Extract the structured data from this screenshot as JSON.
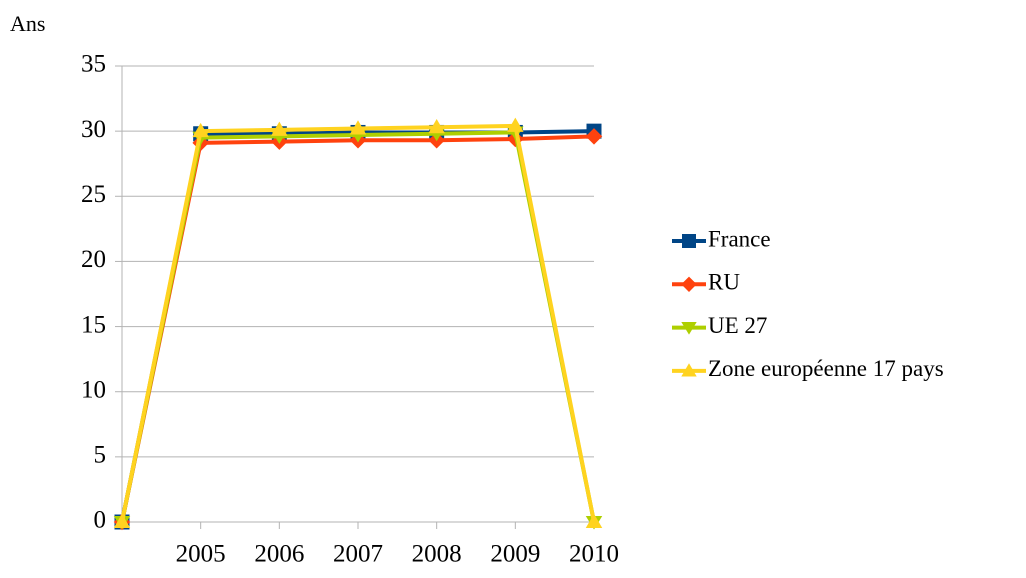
{
  "chart_data": {
    "type": "line",
    "y_label": "Ans",
    "categories": [
      null,
      "2005",
      "2006",
      "2007",
      "2008",
      "2009",
      "2010"
    ],
    "series": [
      {
        "name": "France",
        "color": "#004586",
        "marker": "square",
        "values": [
          0,
          29.8,
          29.8,
          29.9,
          29.9,
          29.9,
          30.0
        ]
      },
      {
        "name": "RU",
        "color": "#ff420e",
        "marker": "diamond",
        "values": [
          0,
          29.1,
          29.2,
          29.3,
          29.3,
          29.4,
          29.6
        ]
      },
      {
        "name": "UE 27",
        "color": "#aecf00",
        "marker": "triangle-down",
        "values": [
          0,
          29.5,
          29.6,
          29.7,
          29.8,
          29.9,
          0
        ]
      },
      {
        "name": "Zone européenne 17 pays",
        "color": "#ffd320",
        "marker": "triangle-up",
        "values": [
          0,
          30.0,
          30.1,
          30.2,
          30.3,
          30.4,
          0
        ]
      }
    ],
    "ylim": [
      0,
      35
    ],
    "yticks": [
      0,
      5,
      10,
      15,
      20,
      25,
      30,
      35
    ],
    "grid": true,
    "legend": "right"
  }
}
